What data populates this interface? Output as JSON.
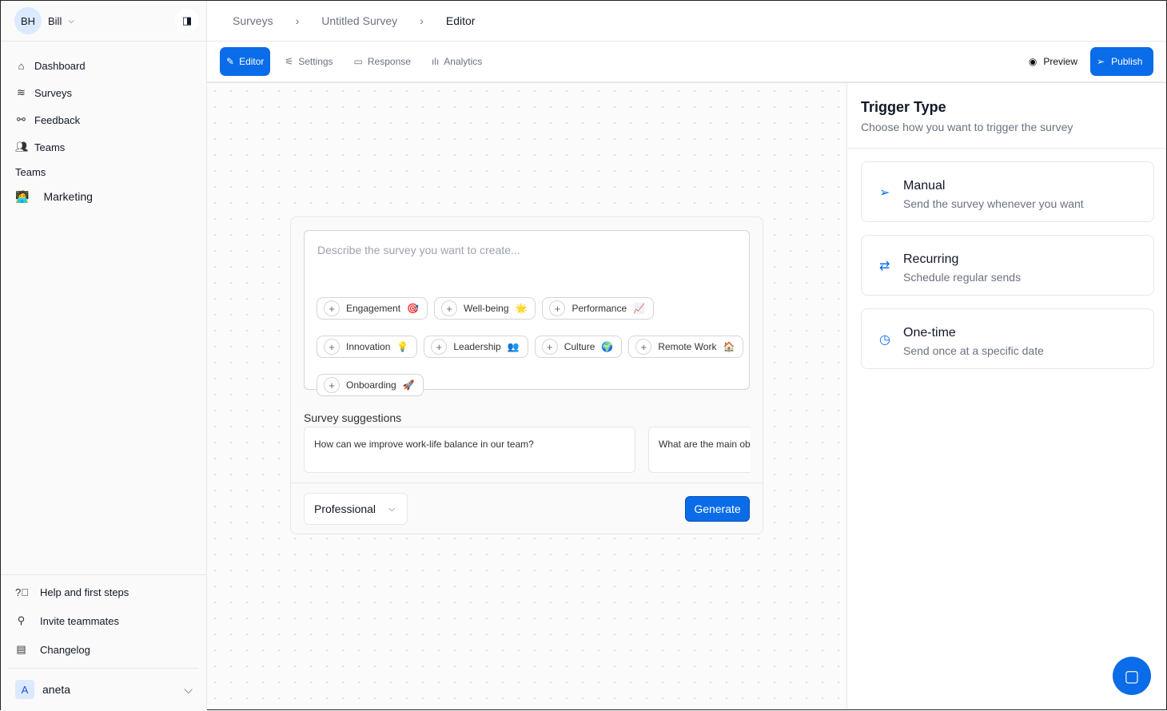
{
  "user": {
    "initials": "BH",
    "name": "Bill"
  },
  "sidebar": {
    "nav": [
      {
        "label": "Dashboard",
        "icon": "home-icon"
      },
      {
        "label": "Surveys",
        "icon": "layers-icon"
      },
      {
        "label": "Feedback",
        "icon": "feedback-icon"
      },
      {
        "label": "Teams",
        "icon": "users-icon"
      }
    ],
    "teams_heading": "Teams",
    "teams": [
      {
        "label": "Marketing",
        "emoji": "🧑‍💻"
      }
    ],
    "bottom": [
      {
        "label": "Help and first steps",
        "icon": "help-icon"
      },
      {
        "label": "Invite teammates",
        "icon": "user-plus-icon"
      },
      {
        "label": "Changelog",
        "icon": "changelog-icon"
      }
    ],
    "account": {
      "initial": "A",
      "name": "aneta"
    }
  },
  "breadcrumb": [
    "Surveys",
    "Untitled Survey",
    "Editor"
  ],
  "toolbar": {
    "tabs": [
      "Editor",
      "Settings",
      "Response",
      "Analytics"
    ],
    "active": "Editor",
    "preview": "Preview",
    "publish": "Publish"
  },
  "editor": {
    "placeholder": "Describe the survey you want to create...",
    "chips": [
      {
        "label": "Engagement",
        "emoji": "🎯"
      },
      {
        "label": "Well-being",
        "emoji": "🌟"
      },
      {
        "label": "Performance",
        "emoji": "📈"
      },
      {
        "label": "Innovation",
        "emoji": "💡"
      },
      {
        "label": "Leadership",
        "emoji": "👥"
      },
      {
        "label": "Culture",
        "emoji": "🌍"
      },
      {
        "label": "Remote Work",
        "emoji": "🏠"
      },
      {
        "label": "Onboarding",
        "emoji": "🚀"
      }
    ],
    "suggestions_title": "Survey suggestions",
    "suggestions": [
      "How can we improve work-life balance in our team?",
      "What are the main ob"
    ],
    "tone": "Professional",
    "generate": "Generate"
  },
  "trigger": {
    "title": "Trigger Type",
    "subtitle": "Choose how you want to trigger the survey",
    "options": [
      {
        "name": "Manual",
        "desc": "Send the survey whenever you want",
        "icon": "send-icon"
      },
      {
        "name": "Recurring",
        "desc": "Schedule regular sends",
        "icon": "repeat-icon"
      },
      {
        "name": "One-time",
        "desc": "Send once at a specific date",
        "icon": "clock-icon"
      }
    ]
  },
  "colors": {
    "accent": "#0a6ce8"
  }
}
